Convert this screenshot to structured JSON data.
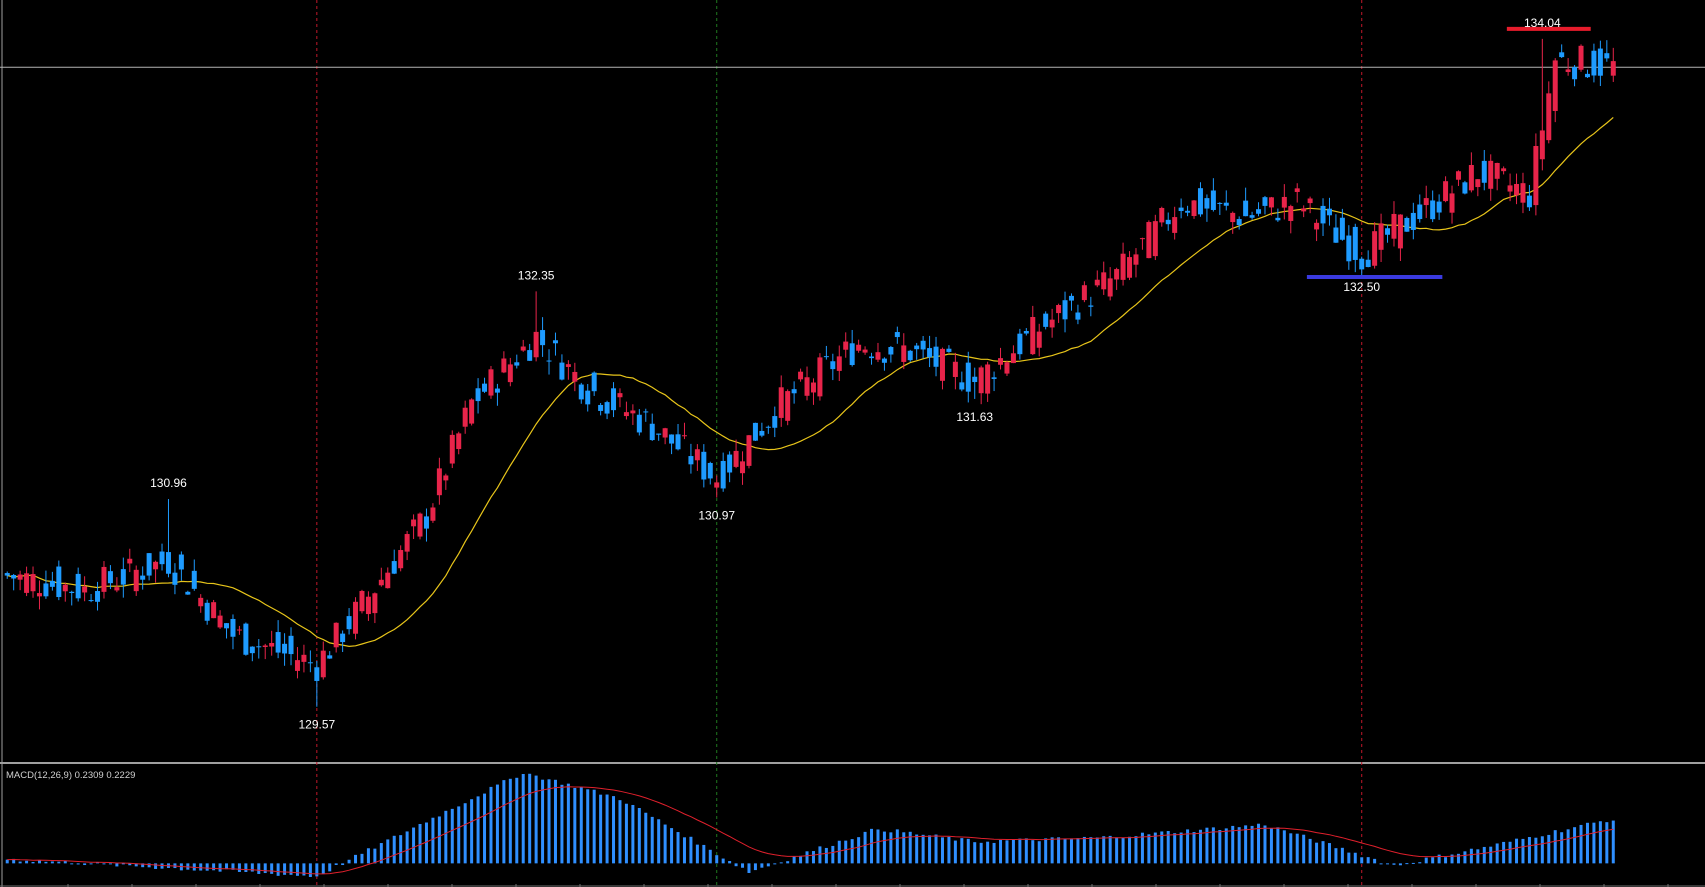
{
  "colors": {
    "background": "#000000",
    "bull": "#e8244a",
    "bear": "#1e9bff",
    "ma": "#e8c51a",
    "signal": "#e0202c",
    "histogram": "#2f8fff",
    "grid_vline": "#c0182a",
    "grid_vline_mid": "#1f7a1f",
    "crosshair": "#b4b4b4",
    "resistance": "#e81c2c",
    "support": "#3a3ae0",
    "frame": "#a0a0a0"
  },
  "indicator": {
    "label": "MACD(12,26,9) 0.2309 0.2229"
  },
  "chart_data": {
    "type": "candlestick",
    "symbol": "",
    "ylim": [
      129.2,
      134.3
    ],
    "grid": "vertical separators",
    "annotations": [
      {
        "text": "130.96",
        "bar": 25,
        "value": 130.96,
        "where": "above"
      },
      {
        "text": "129.57",
        "bar": 48,
        "value": 129.57,
        "where": "below"
      },
      {
        "text": "132.35",
        "bar": 82,
        "value": 132.35,
        "where": "above"
      },
      {
        "text": "130.97",
        "bar": 110,
        "value": 130.97,
        "where": "below"
      },
      {
        "text": "131.63",
        "bar": 150,
        "value": 131.63,
        "where": "below"
      },
      {
        "text": "132.50",
        "bar": 210,
        "value": 132.5,
        "where": "below"
      },
      {
        "text": "134.04",
        "bar": 238,
        "value": 134.04,
        "where": "above"
      }
    ],
    "levels": [
      {
        "name": "resistance",
        "value": 134.04,
        "from_bar": 233,
        "to_bar": 246
      },
      {
        "name": "support",
        "value": 132.5,
        "from_bar": 202,
        "to_bar": 223
      }
    ],
    "current_price": 133.85,
    "vertical_separators": [
      {
        "bar": 48,
        "kind": "red"
      },
      {
        "bar": 110,
        "kind": "green"
      },
      {
        "bar": 210,
        "kind": "red"
      }
    ],
    "macd": {
      "label": "MACD(12,26,9) 0.2309 0.2229",
      "macd": 0.2309,
      "signal": 0.2229
    }
  }
}
